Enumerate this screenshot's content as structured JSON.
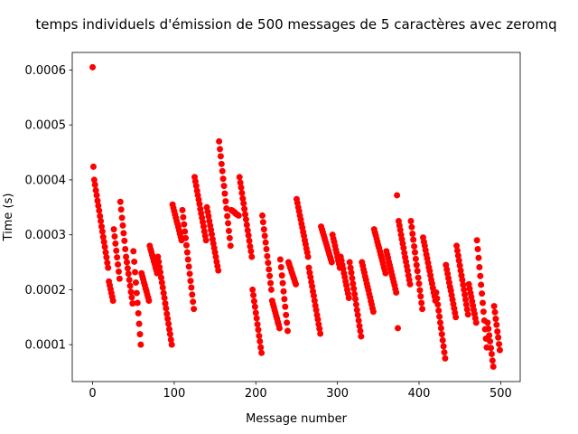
{
  "chart_data": {
    "type": "scatter",
    "title": "temps individuels d'émission de 500 messages de 5 caractères avec zeromq",
    "xlabel": "Message number",
    "ylabel": "Time (s)",
    "color": "#ff0000",
    "xlim": [
      -24.95,
      523.95
    ],
    "ylim": [
      3.28e-05,
      0.000632
    ],
    "xticks": [
      0,
      100,
      200,
      300,
      400,
      500
    ],
    "yticks": [
      0.0001,
      0.0002,
      0.0003,
      0.0004,
      0.0005,
      0.0006
    ],
    "x": [
      0,
      1,
      2,
      3,
      4,
      5,
      6,
      7,
      8,
      9,
      10,
      11,
      12,
      13,
      14,
      15,
      16,
      17,
      18,
      19,
      20,
      21,
      22,
      23,
      24,
      25,
      26,
      27,
      28,
      29,
      30,
      31,
      32,
      33,
      34,
      35,
      36,
      37,
      38,
      39,
      40,
      41,
      42,
      43,
      44,
      45,
      46,
      47,
      48,
      49,
      50,
      51,
      52,
      53,
      54,
      55,
      56,
      57,
      58,
      59,
      60,
      61,
      62,
      63,
      64,
      65,
      66,
      67,
      68,
      69,
      70,
      71,
      72,
      73,
      74,
      75,
      76,
      77,
      78,
      79,
      80,
      81,
      82,
      83,
      84,
      85,
      86,
      87,
      88,
      89,
      90,
      91,
      92,
      93,
      94,
      95,
      96,
      97,
      98,
      99,
      100,
      101,
      102,
      103,
      104,
      105,
      106,
      107,
      108,
      109,
      110,
      111,
      112,
      113,
      114,
      115,
      116,
      117,
      118,
      119,
      120,
      121,
      122,
      123,
      124,
      125,
      126,
      127,
      128,
      129,
      130,
      131,
      132,
      133,
      134,
      135,
      136,
      137,
      138,
      139,
      140,
      141,
      142,
      143,
      144,
      145,
      146,
      147,
      148,
      149,
      150,
      151,
      152,
      153,
      154,
      155,
      156,
      157,
      158,
      159,
      160,
      161,
      162,
      163,
      164,
      165,
      166,
      167,
      168,
      169,
      170,
      171,
      172,
      173,
      174,
      175,
      176,
      177,
      178,
      179,
      180,
      181,
      182,
      183,
      184,
      185,
      186,
      187,
      188,
      189,
      190,
      191,
      192,
      193,
      194,
      195,
      196,
      197,
      198,
      199,
      200,
      201,
      202,
      203,
      204,
      205,
      206,
      207,
      208,
      209,
      210,
      211,
      212,
      213,
      214,
      215,
      216,
      217,
      218,
      219,
      220,
      221,
      222,
      223,
      224,
      225,
      226,
      227,
      228,
      229,
      230,
      231,
      232,
      233,
      234,
      235,
      236,
      237,
      238,
      239,
      240,
      241,
      242,
      243,
      244,
      245,
      246,
      247,
      248,
      249,
      250,
      251,
      252,
      253,
      254,
      255,
      256,
      257,
      258,
      259,
      260,
      261,
      262,
      263,
      264,
      265,
      266,
      267,
      268,
      269,
      270,
      271,
      272,
      273,
      274,
      275,
      276,
      277,
      278,
      279,
      280,
      281,
      282,
      283,
      284,
      285,
      286,
      287,
      288,
      289,
      290,
      291,
      292,
      293,
      294,
      295,
      296,
      297,
      298,
      299,
      300,
      301,
      302,
      303,
      304,
      305,
      306,
      307,
      308,
      309,
      310,
      311,
      312,
      313,
      314,
      315,
      316,
      317,
      318,
      319,
      320,
      321,
      322,
      323,
      324,
      325,
      326,
      327,
      328,
      329,
      330,
      331,
      332,
      333,
      334,
      335,
      336,
      337,
      338,
      339,
      340,
      341,
      342,
      343,
      344,
      345,
      346,
      347,
      348,
      349,
      350,
      351,
      352,
      353,
      354,
      355,
      356,
      357,
      358,
      359,
      360,
      361,
      362,
      363,
      364,
      365,
      366,
      367,
      368,
      369,
      370,
      371,
      372,
      373,
      374,
      375,
      376,
      377,
      378,
      379,
      380,
      381,
      382,
      383,
      384,
      385,
      386,
      387,
      388,
      389,
      390,
      391,
      392,
      393,
      394,
      395,
      396,
      397,
      398,
      399,
      400,
      401,
      402,
      403,
      404,
      405,
      406,
      407,
      408,
      409,
      410,
      411,
      412,
      413,
      414,
      415,
      416,
      417,
      418,
      419,
      420,
      421,
      422,
      423,
      424,
      425,
      426,
      427,
      428,
      429,
      430,
      431,
      432,
      433,
      434,
      435,
      436,
      437,
      438,
      439,
      440,
      441,
      442,
      443,
      444,
      445,
      446,
      447,
      448,
      449,
      450,
      451,
      452,
      453,
      454,
      455,
      456,
      457,
      458,
      459,
      460,
      461,
      462,
      463,
      464,
      465,
      466,
      467,
      468,
      469,
      470,
      471,
      472,
      473,
      474,
      475,
      476,
      477,
      478,
      479,
      480,
      481,
      482,
      483,
      484,
      485,
      486,
      487,
      488,
      489,
      490,
      491,
      492,
      493,
      494,
      495,
      496,
      497,
      498,
      499
    ],
    "values": [
      0.000605,
      0.000424,
      0.0004,
      0.000391,
      0.000381,
      0.000372,
      0.000362,
      0.000353,
      0.000344,
      0.000334,
      0.000325,
      0.000315,
      0.000306,
      0.000296,
      0.000287,
      0.000278,
      0.000268,
      0.000259,
      0.000249,
      0.00024,
      0.000215,
      0.000208,
      0.000201,
      0.000194,
      0.000187,
      0.00018,
      0.00031,
      0.000297,
      0.000284,
      0.000271,
      0.000259,
      0.000246,
      0.000233,
      0.00022,
      0.00036,
      0.000346,
      0.000331,
      0.000317,
      0.000303,
      0.000289,
      0.000274,
      0.00026,
      0.00025,
      0.000239,
      0.000229,
      0.000218,
      0.000207,
      0.000196,
      0.000186,
      0.000175,
      0.00027,
      0.000251,
      0.000232,
      0.000213,
      0.000194,
      0.000176,
      0.000157,
      0.000138,
      0.000119,
      0.0001,
      0.00023,
      0.000224,
      0.000219,
      0.000213,
      0.000208,
      0.000202,
      0.000197,
      0.000191,
      0.000186,
      0.00018,
      0.00028,
      0.000274,
      0.000269,
      0.000263,
      0.000258,
      0.000252,
      0.000247,
      0.000241,
      0.000236,
      0.00023,
      0.00026,
      0.000251,
      0.000241,
      0.000232,
      0.000222,
      0.000213,
      0.000204,
      0.000194,
      0.000185,
      0.000175,
      0.000166,
      0.000156,
      0.000147,
      0.000138,
      0.000128,
      0.000119,
      0.000109,
      0.0001,
      0.000355,
      0.000349,
      0.000343,
      0.000337,
      0.000331,
      0.000325,
      0.00032,
      0.000314,
      0.000308,
      0.000302,
      0.000296,
      0.00029,
      0.000345,
      0.000332,
      0.000319,
      0.000306,
      0.000294,
      0.000281,
      0.000268,
      0.000255,
      0.000242,
      0.000229,
      0.000216,
      0.000204,
      0.000191,
      0.000178,
      0.000165,
      0.000405,
      0.000397,
      0.000389,
      0.00038,
      0.000372,
      0.000364,
      0.000356,
      0.000347,
      0.000339,
      0.000331,
      0.000323,
      0.000315,
      0.000306,
      0.000298,
      0.00029,
      0.00035,
      0.000342,
      0.000334,
      0.000325,
      0.000317,
      0.000309,
      0.000301,
      0.000292,
      0.000284,
      0.000276,
      0.000268,
      0.00026,
      0.000251,
      0.000243,
      0.000235,
      0.00047,
      0.000456,
      0.000443,
      0.000429,
      0.000416,
      0.000402,
      0.000389,
      0.000375,
      0.000361,
      0.000348,
      0.000334,
      0.000321,
      0.000307,
      0.000294,
      0.00028,
      0.000345,
      0.000344,
      0.000343,
      0.000342,
      0.000341,
      0.000339,
      0.000338,
      0.000337,
      0.000336,
      0.000335,
      0.000405,
      0.000395,
      0.000386,
      0.000376,
      0.000366,
      0.000357,
      0.000347,
      0.000337,
      0.000328,
      0.000318,
      0.000308,
      0.000299,
      0.000289,
      0.000279,
      0.00027,
      0.00026,
      0.0002,
      0.00019,
      0.000179,
      0.000169,
      0.000158,
      0.000148,
      0.000137,
      0.000127,
      0.000116,
      0.000106,
      9.5e-05,
      8.5e-05,
      0.000335,
      0.000323,
      0.00031,
      0.000298,
      0.000286,
      0.000274,
      0.000261,
      0.000249,
      0.000237,
      0.000225,
      0.000212,
      0.0002,
      0.00018,
      0.000174,
      0.000169,
      0.000163,
      0.000158,
      0.000152,
      0.000147,
      0.000141,
      0.000136,
      0.00013,
      0.000255,
      0.000241,
      0.000226,
      0.000212,
      0.000197,
      0.000183,
      0.000169,
      0.000154,
      0.00014,
      0.000125,
      0.00025,
      0.000246,
      0.000241,
      0.000237,
      0.000232,
      0.000228,
      0.000223,
      0.000219,
      0.000214,
      0.00021,
      0.000365,
      0.000358,
      0.00035,
      0.000343,
      0.000335,
      0.000328,
      0.00032,
      0.000313,
      0.000305,
      0.000298,
      0.00029,
      0.000283,
      0.000275,
      0.000268,
      0.00026,
      0.00024,
      0.000231,
      0.000223,
      0.000214,
      0.000206,
      0.000197,
      0.000189,
      0.00018,
      0.000171,
      0.000163,
      0.000154,
      0.000146,
      0.000137,
      0.000129,
      0.00012,
      0.000315,
      0.00031,
      0.000305,
      0.0003,
      0.000295,
      0.00029,
      0.000285,
      0.00028,
      0.000275,
      0.00027,
      0.000265,
      0.00026,
      0.000255,
      0.00025,
      0.0003,
      0.000293,
      0.000287,
      0.00028,
      0.000273,
      0.000267,
      0.00026,
      0.000253,
      0.000247,
      0.00024,
      0.00026,
      0.000253,
      0.000245,
      0.000238,
      0.00023,
      0.000223,
      0.000215,
      0.000208,
      0.0002,
      0.000193,
      0.000185,
      0.00025,
      0.00024,
      0.000231,
      0.000221,
      0.000211,
      0.000202,
      0.000192,
      0.000183,
      0.000173,
      0.000163,
      0.000154,
      0.000144,
      0.000134,
      0.000125,
      0.000115,
      0.00025,
      0.000244,
      0.000237,
      0.000231,
      0.000224,
      0.000218,
      0.000211,
      0.000205,
      0.000199,
      0.000192,
      0.000186,
      0.000179,
      0.000173,
      0.000166,
      0.00016,
      0.00031,
      0.000304,
      0.000299,
      0.000293,
      0.000287,
      0.000281,
      0.000276,
      0.00027,
      0.000264,
      0.000259,
      0.000253,
      0.000247,
      0.000241,
      0.000236,
      0.00023,
      0.00027,
      0.000264,
      0.000258,
      0.000251,
      0.000245,
      0.000239,
      0.000233,
      0.000226,
      0.00022,
      0.000214,
      0.000208,
      0.000201,
      0.000195,
      0.000372,
      0.00013,
      0.000325,
      0.000317,
      0.000309,
      0.0003,
      0.000292,
      0.000284,
      0.000276,
      0.000267,
      0.000259,
      0.000251,
      0.000243,
      0.000235,
      0.000226,
      0.000218,
      0.00021,
      0.000325,
      0.000314,
      0.000302,
      0.000291,
      0.000279,
      0.000268,
      0.000256,
      0.000245,
      0.000234,
      0.000222,
      0.000211,
      0.000199,
      0.000188,
      0.000176,
      0.000165,
      0.000295,
      0.000287,
      0.00028,
      0.000272,
      0.000264,
      0.000257,
      0.000249,
      0.000241,
      0.000234,
      0.000226,
      0.000218,
      0.000211,
      0.000203,
      0.000195,
      0.000188,
      0.00018,
      0.000195,
      0.000184,
      0.000173,
      0.000162,
      0.000151,
      0.00014,
      0.00013,
      0.000119,
      0.000108,
      9.7e-05,
      8.6e-05,
      7.5e-05,
      0.000245,
      0.000237,
      0.000229,
      0.000221,
      0.000213,
      0.000205,
      0.000198,
      0.00019,
      0.000182,
      0.000174,
      0.000166,
      0.000158,
      0.00015,
      0.00028,
      0.000271,
      0.000262,
      0.000253,
      0.000244,
      0.000235,
      0.000226,
      0.000218,
      0.000209,
      0.0002,
      0.000191,
      0.000182,
      0.000173,
      0.000164,
      0.000155,
      0.00021,
      0.000202,
      0.000194,
      0.000187,
      0.000179,
      0.000171,
      0.000163,
      0.000156,
      0.000148,
      0.00014,
      0.00029,
      0.000274,
      0.000258,
      0.000241,
      0.000225,
      0.000209,
      0.000193,
      0.000176,
      0.00016,
      0.000144,
      0.000128,
      0.000111,
      9.5e-05,
      0.00014,
      0.000129,
      0.000117,
      0.000106,
      9.4e-05,
      8.3e-05,
      7.1e-05,
      6e-05,
      0.00017,
      0.000159,
      0.000147,
      0.000136,
      0.000124,
      0.000113,
      0.000101,
      9e-05
    ]
  }
}
